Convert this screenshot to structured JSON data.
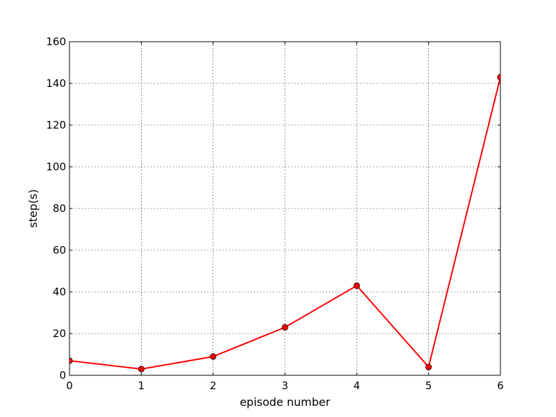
{
  "chart_data": {
    "type": "line",
    "title": "",
    "xlabel": "episode number",
    "ylabel": "step(s)",
    "x": [
      0,
      1,
      2,
      3,
      4,
      5,
      6
    ],
    "series": [
      {
        "values": [
          7,
          3,
          9,
          23,
          43,
          4,
          143
        ],
        "color": "#ff0000",
        "marker": "circle"
      }
    ],
    "xlim": [
      0,
      6
    ],
    "ylim": [
      0,
      160
    ],
    "xticks": [
      "0",
      "1",
      "2",
      "3",
      "4",
      "5",
      "6"
    ],
    "yticks": [
      "0",
      "20",
      "40",
      "60",
      "80",
      "100",
      "120",
      "140",
      "160"
    ],
    "grid": true,
    "grid_style": "dotted",
    "legend": "none"
  }
}
